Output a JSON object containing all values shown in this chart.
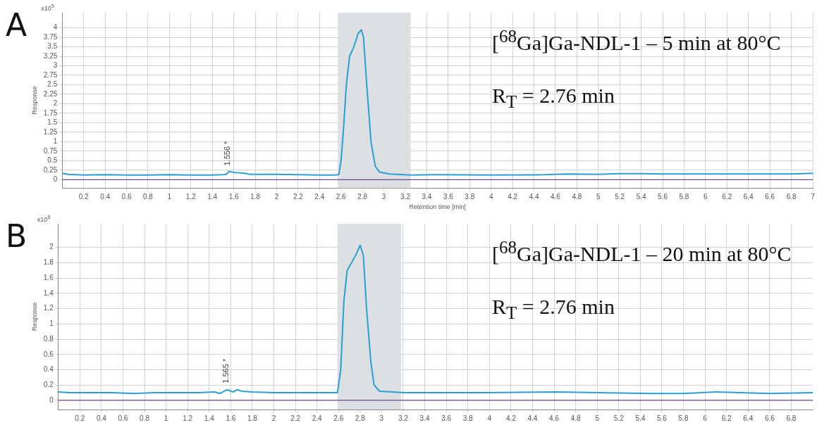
{
  "chart_data": [
    {
      "type": "line",
      "title": "A",
      "xlabel": "Retention time [min]",
      "ylabel": "Response",
      "xlim": [
        0,
        7
      ],
      "ylim": [
        -0.22,
        4.4
      ],
      "xticks": [
        0.2,
        0.4,
        0.6,
        0.8,
        1,
        1.2,
        1.4,
        1.6,
        1.8,
        2,
        2.2,
        2.4,
        2.6,
        2.8,
        3,
        3.2,
        3.4,
        3.6,
        3.8,
        4,
        4.2,
        4.4,
        4.6,
        4.8,
        5,
        5.2,
        5.4,
        5.6,
        5.8,
        6,
        6.2,
        6.4,
        6.6,
        6.8,
        7
      ],
      "yticks": [
        0,
        0.25,
        0.5,
        0.75,
        1,
        1.25,
        1.5,
        1.75,
        2,
        2.25,
        2.5,
        2.75,
        3,
        3.25,
        3.5,
        3.75,
        4
      ],
      "grid": true,
      "marker": "none",
      "line_style": "solid",
      "series": [
        {
          "color": "#2a9fd6",
          "x": [
            0,
            0.05,
            0.2,
            0.4,
            0.6,
            0.8,
            1,
            1.2,
            1.4,
            1.5,
            1.53,
            1.556,
            1.6,
            1.65,
            1.7,
            1.75,
            1.8,
            2,
            2.2,
            2.4,
            2.55,
            2.58,
            2.6,
            2.62,
            2.65,
            2.68,
            2.72,
            2.76,
            2.79,
            2.81,
            2.84,
            2.88,
            2.92,
            2.96,
            3.05,
            3.25,
            3.5,
            4,
            4.5,
            4.7,
            5,
            5.2,
            5.4,
            5.6,
            6,
            6.4,
            6.8,
            7
          ],
          "values": [
            0.17,
            0.14,
            0.12,
            0.13,
            0.12,
            0.12,
            0.13,
            0.12,
            0.12,
            0.13,
            0.14,
            0.22,
            0.19,
            0.18,
            0.17,
            0.14,
            0.14,
            0.14,
            0.13,
            0.12,
            0.12,
            0.14,
            0.5,
            1.2,
            2.5,
            3.25,
            3.5,
            3.85,
            3.95,
            3.75,
            2.5,
            1.0,
            0.35,
            0.2,
            0.15,
            0.12,
            0.13,
            0.12,
            0.13,
            0.15,
            0.14,
            0.16,
            0.16,
            0.15,
            0.15,
            0.15,
            0.15,
            0.17
          ]
        }
      ],
      "bands": [
        {
          "axis": "x",
          "from": 2.57,
          "to": 3.25,
          "color": "#dde0e3"
        }
      ],
      "ref_lines": [
        {
          "axis": "y",
          "value": 0,
          "color": "#6b4a8a"
        }
      ],
      "annotations": [
        "x10$^{5}$",
        "[$^{68}$Ga]Ga-NDL-1 – 5 min at 80°C",
        "R$_{T}$ = 2.76 min",
        {
          "text": "1.556 *",
          "x": 1.556,
          "y": 0.22
        }
      ]
    },
    {
      "type": "line",
      "title": "B",
      "ylabel": "Response",
      "xlim": [
        0,
        7
      ],
      "ylim": [
        -0.12,
        2.31
      ],
      "xticks": [
        0.2,
        0.4,
        0.6,
        0.8,
        1,
        1.2,
        1.4,
        1.6,
        1.8,
        2,
        2.2,
        2.4,
        2.6,
        2.8,
        3,
        3.2,
        3.4,
        3.6,
        3.8,
        4,
        4.2,
        4.4,
        4.6,
        4.8,
        5,
        5.2,
        5.4,
        5.6,
        5.8,
        6,
        6.2,
        6.4,
        6.6,
        6.8
      ],
      "yticks": [
        0,
        0.2,
        0.4,
        0.6,
        0.8,
        1,
        1.2,
        1.4,
        1.6,
        1.8,
        2
      ],
      "grid": true,
      "marker": "none",
      "line_style": "solid",
      "series": [
        {
          "color": "#2a9fd6",
          "x": [
            0,
            0.1,
            0.3,
            0.5,
            0.7,
            0.9,
            1.1,
            1.3,
            1.45,
            1.5,
            1.565,
            1.62,
            1.66,
            1.7,
            1.8,
            2,
            2.2,
            2.4,
            2.59,
            2.62,
            2.65,
            2.68,
            2.72,
            2.76,
            2.8,
            2.83,
            2.86,
            2.9,
            2.93,
            2.98,
            3.1,
            3.2,
            3.6,
            4,
            4.6,
            5,
            5.5,
            5.8,
            6.1,
            6.6,
            7
          ],
          "values": [
            0.11,
            0.1,
            0.1,
            0.1,
            0.09,
            0.1,
            0.1,
            0.1,
            0.11,
            0.09,
            0.14,
            0.11,
            0.14,
            0.12,
            0.11,
            0.1,
            0.1,
            0.1,
            0.1,
            0.4,
            1.3,
            1.7,
            1.8,
            1.9,
            2.03,
            1.9,
            1.2,
            0.5,
            0.2,
            0.12,
            0.11,
            0.1,
            0.1,
            0.1,
            0.11,
            0.1,
            0.09,
            0.09,
            0.11,
            0.09,
            0.1
          ]
        }
      ],
      "bands": [
        {
          "axis": "x",
          "from": 2.59,
          "to": 3.18,
          "color": "#dde0e3"
        }
      ],
      "ref_lines": [
        {
          "axis": "y",
          "value": 0,
          "color": "#6b4a8a"
        }
      ],
      "annotations": [
        "x10$^{5}$",
        "[$^{68}$Ga]Ga-NDL-1 – 20 min at 80°C",
        "R$_{T}$ = 2.76 min",
        {
          "text": "1.565 *",
          "x": 1.565,
          "y": 0.15
        }
      ]
    }
  ]
}
